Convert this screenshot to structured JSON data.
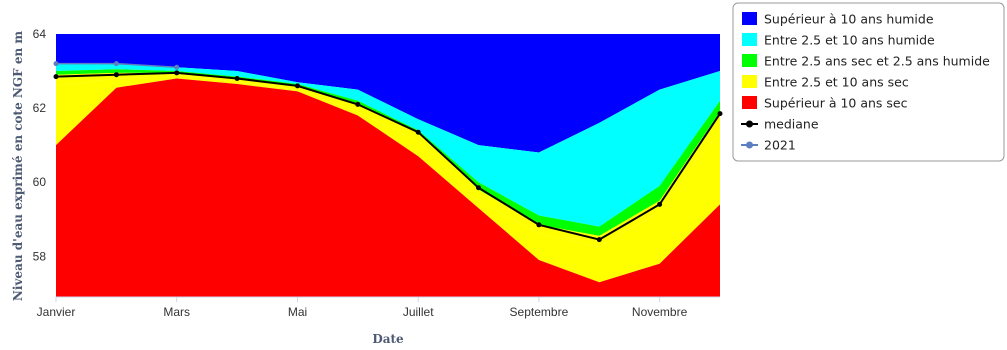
{
  "chart_data": {
    "type": "area",
    "title": "",
    "xlabel": "Date",
    "ylabel": "Niveau d'eau exprimé en cote NGF en m",
    "x_months": [
      0,
      1,
      2,
      3,
      4,
      5,
      6,
      7,
      8,
      9,
      10,
      11
    ],
    "xticks": [
      {
        "label": "Janvier",
        "month": 0
      },
      {
        "label": "Mars",
        "month": 2
      },
      {
        "label": "Mai",
        "month": 4
      },
      {
        "label": "Juillet",
        "month": 6
      },
      {
        "label": "Septembre",
        "month": 8
      },
      {
        "label": "Novembre",
        "month": 10
      }
    ],
    "yticks": [
      58,
      60,
      62,
      64
    ],
    "ylim": [
      56.9,
      64
    ],
    "xlim": [
      0,
      11
    ],
    "series": [
      {
        "name": "Supérieur à 10 ans humide",
        "type": "band",
        "color": "#0000ff",
        "values": [
          64,
          64,
          64,
          64,
          64,
          64,
          64,
          64,
          64,
          64,
          64,
          64
        ]
      },
      {
        "name": "Entre 2.5 et 10 ans humide",
        "type": "band",
        "color": "#00ffff",
        "values": [
          63.2,
          63.2,
          63.1,
          63.0,
          62.7,
          62.5,
          61.7,
          61.0,
          60.8,
          61.6,
          62.5,
          63.0
        ]
      },
      {
        "name": "Entre 2.5 ans sec et 2.5 ans humide",
        "type": "band",
        "color": "#00ff00",
        "values": [
          63.0,
          63.05,
          63.0,
          62.85,
          62.65,
          62.2,
          61.4,
          60.0,
          59.1,
          58.8,
          59.9,
          62.2
        ]
      },
      {
        "name": "Entre 2.5 et 10 ans sec",
        "type": "band",
        "color": "#ffff00",
        "values": [
          62.9,
          62.95,
          62.95,
          62.8,
          62.6,
          62.1,
          61.35,
          59.8,
          58.85,
          58.55,
          59.5,
          61.9
        ]
      },
      {
        "name": "Supérieur à 10 ans sec",
        "type": "band",
        "color": "#ff0000",
        "values": [
          62.6,
          62.8,
          62.9,
          62.7,
          62.5,
          61.9,
          61.1,
          59.5,
          58.6,
          58.25,
          59.2,
          61.4
        ]
      },
      {
        "name": "mediane",
        "type": "line",
        "color": "#000000",
        "values": [
          62.85,
          62.9,
          62.95,
          62.8,
          62.6,
          62.1,
          61.35,
          59.85,
          58.85,
          58.45,
          59.4,
          61.85
        ]
      },
      {
        "name": "2021",
        "type": "line",
        "color": "#5b7fc0",
        "values": [
          63.2,
          63.2,
          63.1
        ]
      }
    ],
    "bottom_band": {
      "values": [
        61.0,
        62.55,
        62.8,
        62.65,
        62.45,
        61.8,
        60.7,
        59.3,
        57.9,
        57.3,
        57.8,
        59.4
      ]
    },
    "legend_position": "top-right",
    "grid": false
  }
}
